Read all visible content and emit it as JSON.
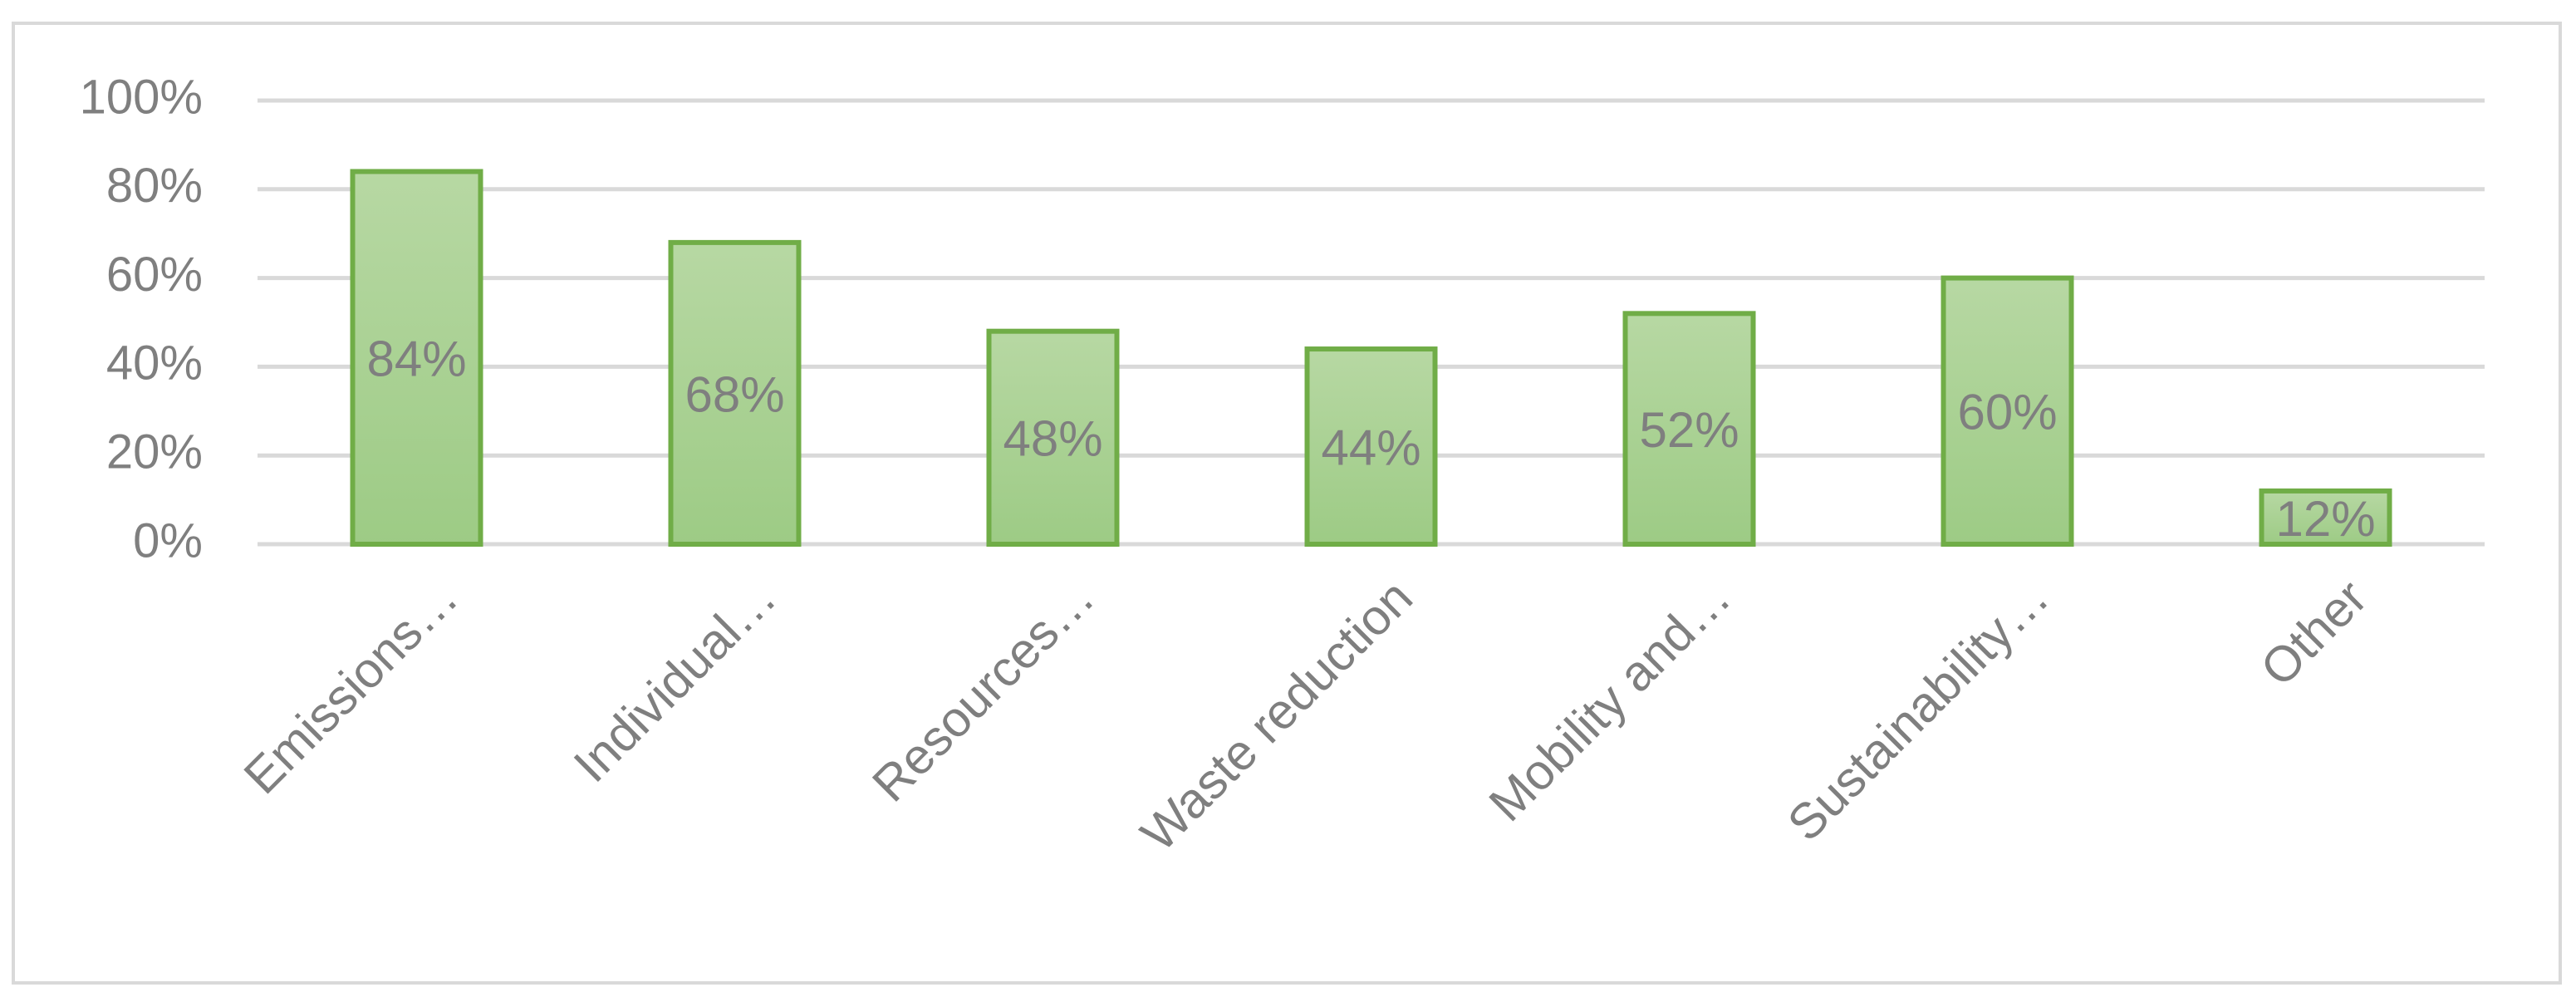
{
  "chart_data": {
    "type": "bar",
    "categories": [
      "Emissions…",
      "Individual…",
      "Resources…",
      "Waste reduction",
      "Mobility and…",
      "Sustainability…",
      "Other"
    ],
    "values": [
      84,
      68,
      48,
      44,
      52,
      60,
      12
    ],
    "value_labels": [
      "84%",
      "68%",
      "48%",
      "44%",
      "52%",
      "60%",
      "12%"
    ],
    "color": "#70ad47",
    "ylim": [
      0,
      100
    ],
    "yticks": [
      {
        "value": 0,
        "label": "0%"
      },
      {
        "value": 20,
        "label": "20%"
      },
      {
        "value": 40,
        "label": "40%"
      },
      {
        "value": 60,
        "label": "60%"
      },
      {
        "value": 80,
        "label": "80%"
      },
      {
        "value": 100,
        "label": "100%"
      }
    ],
    "grid": true
  }
}
